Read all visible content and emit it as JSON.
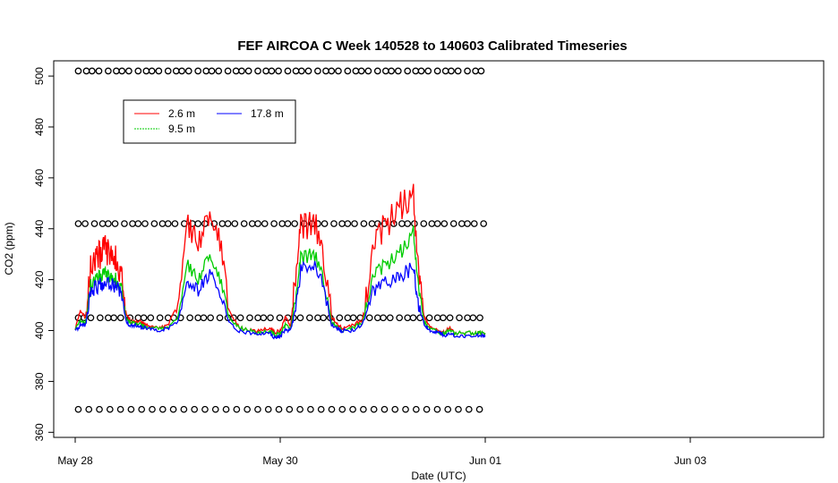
{
  "chart_data": {
    "type": "line",
    "title": "FEF AIRCOA C  Week 140528 to 140603  Calibrated Timeseries",
    "xlabel": "Date (UTC)",
    "ylabel": "CO2 (ppm)",
    "x_unit": "days",
    "xlim": [
      0,
      7.3
    ],
    "ylim": [
      358,
      506
    ],
    "x_ticks": [
      {
        "value": 0,
        "label": "May 28"
      },
      {
        "value": 2,
        "label": "May 30"
      },
      {
        "value": 4,
        "label": "Jun 01"
      },
      {
        "value": 6,
        "label": "Jun 03"
      }
    ],
    "y_ticks": [
      360,
      380,
      400,
      420,
      440,
      460,
      480,
      500
    ],
    "grid": false,
    "legend": {
      "position": "top-left",
      "entries": [
        "2.6 m",
        "17.8 m",
        "9.5 m"
      ]
    },
    "colors": {
      "2.6 m": "#ff0000",
      "9.5 m": "#00cc00",
      "17.8 m": "#0000ff"
    },
    "series": [
      {
        "name": "2.6 m",
        "x": [
          0,
          0.05,
          0.1,
          0.15,
          0.2,
          0.25,
          0.3,
          0.35,
          0.4,
          0.45,
          0.5,
          0.55,
          0.6,
          0.65,
          0.7,
          0.8,
          0.9,
          1.0,
          1.1,
          1.2,
          1.3,
          1.4,
          1.5,
          1.6,
          1.7,
          1.8,
          1.9,
          1.95,
          2.0,
          2.05,
          2.1,
          2.15,
          2.2,
          2.3,
          2.4,
          2.5,
          2.55,
          2.6,
          2.7,
          2.8,
          2.9,
          3.0,
          3.1,
          3.2,
          3.3,
          3.35,
          3.4,
          3.45,
          3.5,
          3.55,
          3.6,
          3.65,
          3.7,
          3.8,
          3.9,
          3.95,
          4.0
        ],
        "y": [
          400,
          408,
          405,
          425,
          428,
          430,
          432,
          430,
          428,
          422,
          406,
          403,
          404,
          403,
          402,
          401,
          402,
          410,
          440,
          435,
          442,
          438,
          408,
          401,
          400,
          400,
          401,
          399,
          400,
          405,
          402,
          420,
          440,
          442,
          438,
          405,
          403,
          401,
          402,
          404,
          430,
          440,
          445,
          450,
          455,
          420,
          406,
          402,
          400,
          400,
          399,
          401,
          399,
          399,
          399,
          399,
          399
        ]
      },
      {
        "name": "9.5 m",
        "x": [
          0,
          0.05,
          0.1,
          0.15,
          0.2,
          0.25,
          0.3,
          0.35,
          0.4,
          0.45,
          0.5,
          0.55,
          0.6,
          0.65,
          0.7,
          0.8,
          0.9,
          1.0,
          1.1,
          1.2,
          1.3,
          1.4,
          1.5,
          1.6,
          1.7,
          1.8,
          1.9,
          1.95,
          2.0,
          2.05,
          2.1,
          2.15,
          2.2,
          2.3,
          2.4,
          2.5,
          2.55,
          2.6,
          2.7,
          2.8,
          2.9,
          3.0,
          3.1,
          3.2,
          3.3,
          3.35,
          3.4,
          3.45,
          3.5,
          3.55,
          3.6,
          3.65,
          3.7,
          3.8,
          3.9,
          3.95,
          4.0
        ],
        "y": [
          400,
          404,
          403,
          418,
          420,
          421,
          422,
          421,
          420,
          417,
          404,
          403,
          403,
          402,
          401,
          401,
          401,
          405,
          425,
          420,
          428,
          422,
          405,
          401,
          400,
          399,
          400,
          398,
          399,
          402,
          401,
          412,
          428,
          430,
          426,
          403,
          402,
          400,
          401,
          403,
          420,
          425,
          428,
          432,
          440,
          415,
          404,
          401,
          400,
          399,
          399,
          400,
          399,
          399,
          399,
          399,
          399
        ]
      },
      {
        "name": "17.8 m",
        "x": [
          0,
          0.05,
          0.1,
          0.15,
          0.2,
          0.25,
          0.3,
          0.35,
          0.4,
          0.45,
          0.5,
          0.55,
          0.6,
          0.65,
          0.7,
          0.8,
          0.9,
          1.0,
          1.1,
          1.2,
          1.3,
          1.4,
          1.5,
          1.6,
          1.7,
          1.8,
          1.9,
          1.95,
          2.0,
          2.05,
          2.1,
          2.15,
          2.2,
          2.3,
          2.4,
          2.5,
          2.55,
          2.6,
          2.7,
          2.8,
          2.9,
          3.0,
          3.1,
          3.2,
          3.3,
          3.35,
          3.4,
          3.45,
          3.5,
          3.55,
          3.6,
          3.65,
          3.7,
          3.8,
          3.9,
          3.95,
          4.0
        ],
        "y": [
          400,
          402,
          402,
          415,
          417,
          418,
          419,
          418,
          417,
          415,
          403,
          402,
          402,
          401,
          401,
          400,
          401,
          403,
          420,
          416,
          422,
          418,
          403,
          400,
          399,
          399,
          399,
          397,
          398,
          400,
          400,
          408,
          424,
          426,
          422,
          402,
          401,
          400,
          400,
          402,
          415,
          418,
          420,
          422,
          425,
          410,
          403,
          400,
          399,
          399,
          398,
          399,
          398,
          398,
          398,
          398,
          398
        ]
      }
    ],
    "markers": [
      {
        "name": "upper",
        "y": 502,
        "symbol": "o"
      },
      {
        "name": "high",
        "y": 442,
        "symbol": "o"
      },
      {
        "name": "mid",
        "y": 405,
        "symbol": "o"
      },
      {
        "name": "low",
        "y": 369,
        "symbol": "o"
      }
    ]
  }
}
